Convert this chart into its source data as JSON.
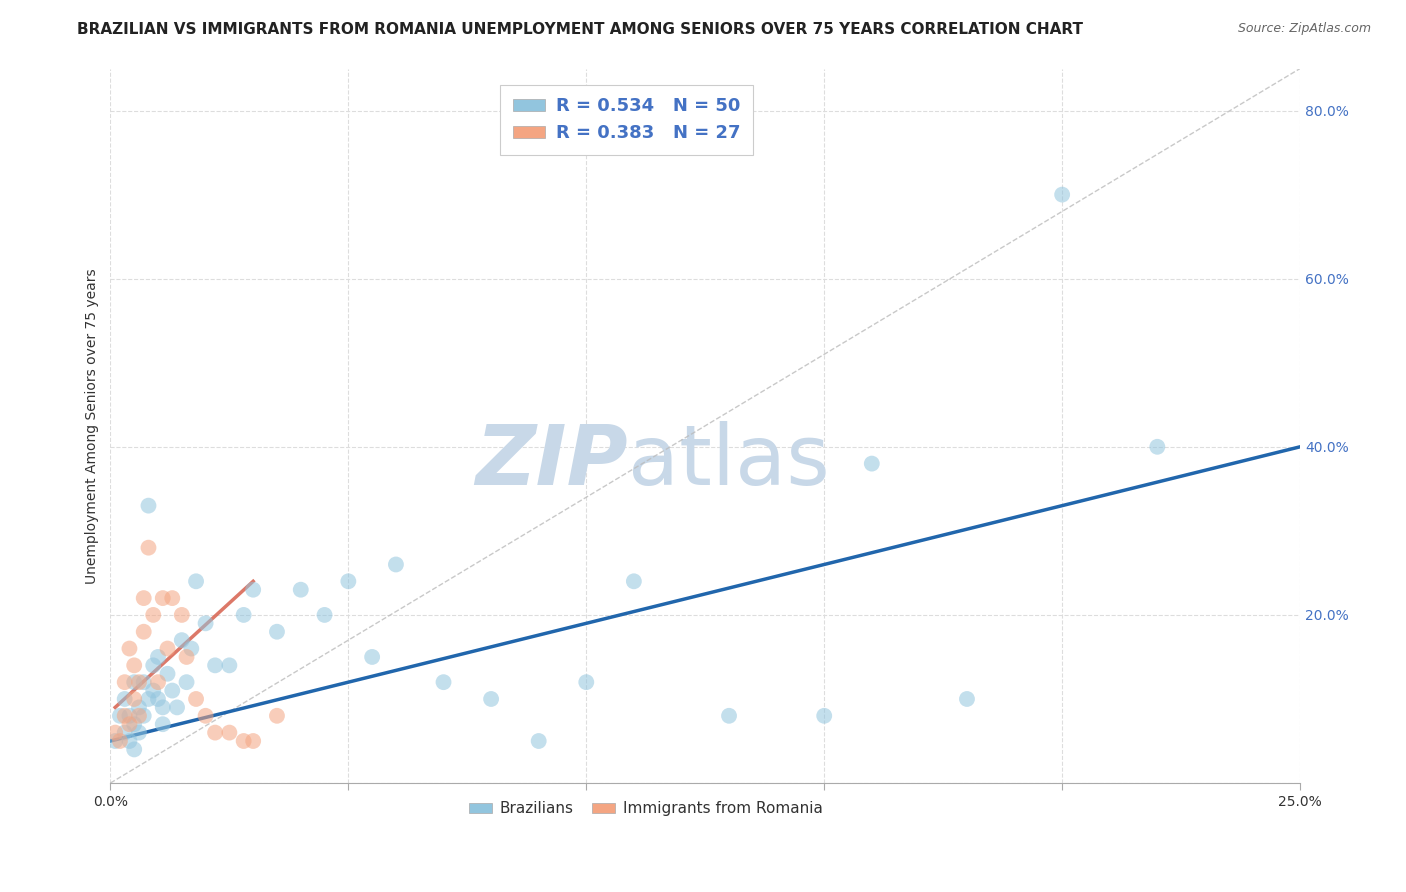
{
  "title": "BRAZILIAN VS IMMIGRANTS FROM ROMANIA UNEMPLOYMENT AMONG SENIORS OVER 75 YEARS CORRELATION CHART",
  "source": "Source: ZipAtlas.com",
  "ylabel": "Unemployment Among Seniors over 75 years",
  "xlim": [
    0.0,
    0.25
  ],
  "ylim": [
    0.0,
    0.85
  ],
  "x_ticks": [
    0.0,
    0.05,
    0.1,
    0.15,
    0.2,
    0.25
  ],
  "y_ticks": [
    0.0,
    0.2,
    0.4,
    0.6,
    0.8
  ],
  "y_tick_labels": [
    "",
    "20.0%",
    "40.0%",
    "60.0%",
    "80.0%"
  ],
  "x_tick_labels": [
    "0.0%",
    "",
    "",
    "",
    "",
    "25.0%"
  ],
  "legend1_label": "R = 0.534   N = 50",
  "legend2_label": "R = 0.383   N = 27",
  "blue_color": "#92c5de",
  "pink_color": "#f4a582",
  "blue_line_color": "#2166ac",
  "pink_line_color": "#d6604d",
  "diag_color": "#bbbbbb",
  "watermark_zip": "ZIP",
  "watermark_atlas": "atlas",
  "watermark_color": "#c8d8e8",
  "bg_color": "#ffffff",
  "grid_color": "#dddddd",
  "title_fontsize": 11,
  "label_fontsize": 10,
  "tick_fontsize": 10,
  "scatter_size": 130,
  "scatter_alpha": 0.55,
  "line_width": 2.5,
  "blue_scatter_x": [
    0.001,
    0.002,
    0.003,
    0.003,
    0.004,
    0.004,
    0.005,
    0.005,
    0.005,
    0.006,
    0.006,
    0.007,
    0.007,
    0.008,
    0.008,
    0.009,
    0.009,
    0.01,
    0.01,
    0.011,
    0.011,
    0.012,
    0.013,
    0.014,
    0.015,
    0.016,
    0.017,
    0.018,
    0.02,
    0.022,
    0.025,
    0.028,
    0.03,
    0.035,
    0.04,
    0.045,
    0.05,
    0.055,
    0.06,
    0.07,
    0.08,
    0.09,
    0.1,
    0.11,
    0.13,
    0.15,
    0.16,
    0.18,
    0.2,
    0.22
  ],
  "blue_scatter_y": [
    0.05,
    0.08,
    0.06,
    0.1,
    0.05,
    0.08,
    0.12,
    0.07,
    0.04,
    0.09,
    0.06,
    0.12,
    0.08,
    0.33,
    0.1,
    0.11,
    0.14,
    0.1,
    0.15,
    0.09,
    0.07,
    0.13,
    0.11,
    0.09,
    0.17,
    0.12,
    0.16,
    0.24,
    0.19,
    0.14,
    0.14,
    0.2,
    0.23,
    0.18,
    0.23,
    0.2,
    0.24,
    0.15,
    0.26,
    0.12,
    0.1,
    0.05,
    0.12,
    0.24,
    0.08,
    0.08,
    0.38,
    0.1,
    0.7,
    0.4
  ],
  "pink_scatter_x": [
    0.001,
    0.002,
    0.003,
    0.003,
    0.004,
    0.004,
    0.005,
    0.005,
    0.006,
    0.006,
    0.007,
    0.007,
    0.008,
    0.009,
    0.01,
    0.011,
    0.012,
    0.013,
    0.015,
    0.016,
    0.018,
    0.02,
    0.022,
    0.025,
    0.028,
    0.03,
    0.035
  ],
  "pink_scatter_y": [
    0.06,
    0.05,
    0.08,
    0.12,
    0.07,
    0.16,
    0.1,
    0.14,
    0.12,
    0.08,
    0.18,
    0.22,
    0.28,
    0.2,
    0.12,
    0.22,
    0.16,
    0.22,
    0.2,
    0.15,
    0.1,
    0.08,
    0.06,
    0.06,
    0.05,
    0.05,
    0.08
  ],
  "blue_line_x": [
    0.0,
    0.25
  ],
  "blue_line_y": [
    0.05,
    0.4
  ],
  "pink_line_x": [
    0.001,
    0.03
  ],
  "pink_line_y": [
    0.09,
    0.24
  ],
  "diag_line_x": [
    0.0,
    0.25
  ],
  "diag_line_y": [
    0.0,
    0.85
  ]
}
